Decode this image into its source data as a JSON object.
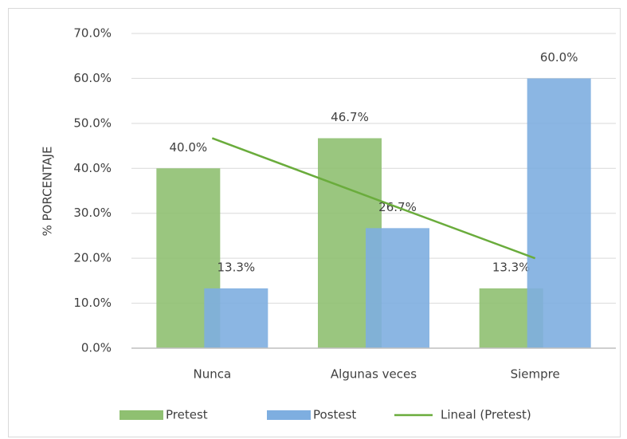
{
  "chart_data": {
    "type": "bar",
    "ylabel": "% PORCENTAJE",
    "categories": [
      "Nunca",
      "Algunas veces",
      "Siempre"
    ],
    "series": [
      {
        "name": "Pretest",
        "color": "#8fc071",
        "values": [
          40.0,
          46.7,
          13.3
        ],
        "value_labels": [
          "40.0%",
          "46.7%",
          "13.3%"
        ]
      },
      {
        "name": "Postest",
        "color": "#7eaee0",
        "values": [
          13.3,
          26.7,
          60.0
        ],
        "value_labels": [
          "13.3%",
          "26.7%",
          "60.0%"
        ]
      },
      {
        "name": "Lineal (Pretest)",
        "color": "#6aac3c",
        "type": "line",
        "values": [
          46.7,
          33.3,
          20.0
        ]
      }
    ],
    "ylim": [
      0,
      70
    ],
    "yticks": [
      {
        "value": 0,
        "label": "0.0%"
      },
      {
        "value": 10,
        "label": "10.0%"
      },
      {
        "value": 20,
        "label": "20.0%"
      },
      {
        "value": 30,
        "label": "30.0%"
      },
      {
        "value": 40,
        "label": "40.0%"
      },
      {
        "value": 50,
        "label": "50.0%"
      },
      {
        "value": 60,
        "label": "60.0%"
      },
      {
        "value": 70,
        "label": "70.0%"
      }
    ],
    "grid": true,
    "legend": "bottom"
  }
}
